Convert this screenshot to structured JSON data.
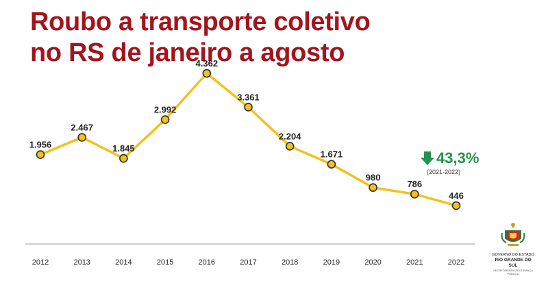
{
  "title": {
    "line1": "Roubo a transporte coletivo",
    "line2": "no RS de janeiro a agosto"
  },
  "chart_data": {
    "type": "line",
    "title": "Roubo a transporte coletivo no RS de janeiro a agosto",
    "xlabel": "",
    "ylabel": "",
    "x": [
      "2012",
      "2013",
      "2014",
      "2015",
      "2016",
      "2017",
      "2018",
      "2019",
      "2020",
      "2021",
      "2022"
    ],
    "values": [
      1956,
      2467,
      1845,
      2992,
      4362,
      3361,
      2204,
      1671,
      980,
      786,
      446
    ],
    "labels": [
      "1.956",
      "2.467",
      "1.845",
      "2.992",
      "4.362",
      "3.361",
      "2.204",
      "1.671",
      "980",
      "786",
      "446"
    ],
    "ylim": [
      0,
      4362
    ],
    "grid": false,
    "colors": {
      "line": "#f2c21b",
      "marker_fill": "#f2c21b",
      "marker_stroke": "#2b2b2b",
      "axis": "#9a9a9a"
    }
  },
  "change": {
    "percent": "43,3%",
    "period": "(2021-2022)",
    "color": "#23924a",
    "icon": "arrow-down-icon"
  },
  "logo": {
    "line1": "GOVERNO DO ESTADO",
    "line2": "RIO GRANDE DO SUL",
    "line3": "SECRETARIA DA SEGURANÇA PÚBLICA"
  }
}
